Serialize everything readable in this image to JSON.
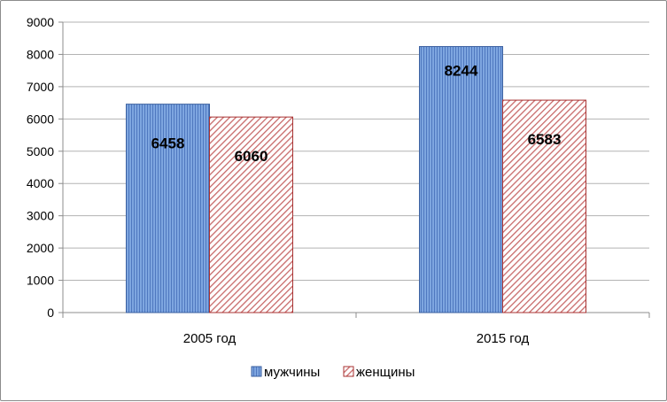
{
  "chart_data": {
    "type": "bar",
    "categories": [
      "2005 год",
      "2015 год"
    ],
    "series": [
      {
        "name": "мужчины",
        "values": [
          6458,
          8244
        ],
        "color": "#6f99d8",
        "pattern": "vertical-stripes"
      },
      {
        "name": "женщины",
        "values": [
          6060,
          6583
        ],
        "color": "#a83232",
        "pattern": "diagonal-hatch"
      }
    ],
    "data_labels": [
      [
        "6458",
        "8244"
      ],
      [
        "6060",
        "6583"
      ]
    ],
    "y_ticks": [
      "0",
      "1000",
      "2000",
      "3000",
      "4000",
      "5000",
      "6000",
      "7000",
      "8000",
      "9000"
    ],
    "ylim": [
      0,
      9000
    ],
    "grid": true,
    "legend_position": "bottom",
    "title": "",
    "xlabel": "",
    "ylabel": ""
  }
}
